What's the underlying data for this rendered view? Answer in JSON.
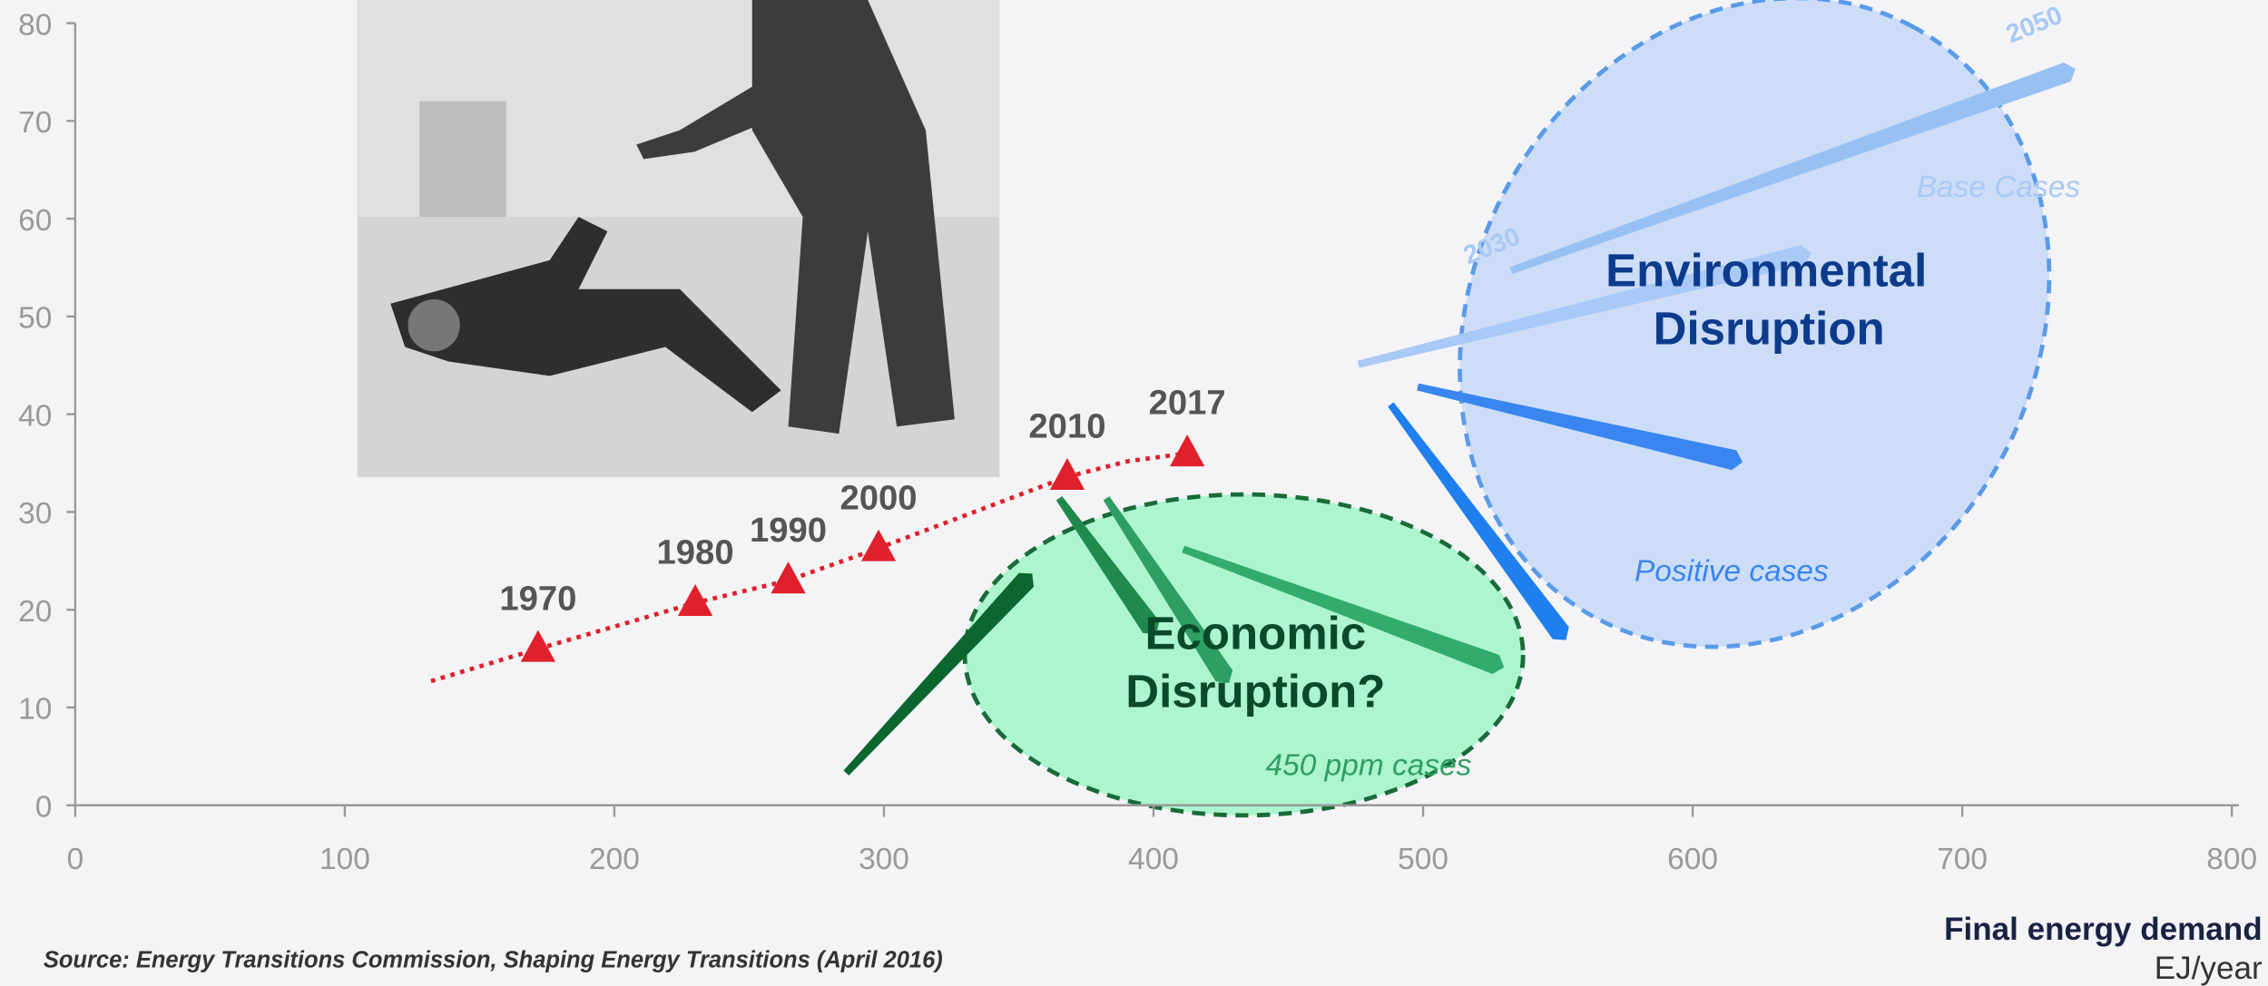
{
  "chart_data": {
    "type": "scatter",
    "x": [
      171.7,
      230,
      264.5,
      298,
      368,
      412.5
    ],
    "values": [
      16,
      20.7,
      23,
      26.3,
      33.6,
      36
    ],
    "value_labels": [
      "1970",
      "1980",
      "1990",
      "2000",
      "2010",
      "2017"
    ],
    "color": "#e0202a",
    "trend": {
      "x": [
        132,
        171.7,
        230,
        264.5,
        298,
        368,
        390.6,
        412.5
      ],
      "y": [
        12.7,
        16,
        20.7,
        23,
        26.3,
        33.6,
        35.2,
        36
      ],
      "color": "#e0202a"
    },
    "arrows": [
      {
        "x": [
          286,
          355
        ],
        "y": [
          3.3,
          23.7
        ],
        "color": "#0b6630"
      },
      {
        "x": [
          365,
          401
        ],
        "y": [
          31.4,
          17.5
        ],
        "color": "#1f8a4c"
      },
      {
        "x": [
          382.5,
          428
        ],
        "y": [
          31.4,
          12.5
        ],
        "color": "#2f9e62"
      },
      {
        "x": [
          411,
          530
        ],
        "y": [
          26.2,
          14.1
        ],
        "color": "#33ab6c"
      },
      {
        "x": [
          488,
          553
        ],
        "y": [
          41,
          16.9
        ],
        "color": "#1f7fef"
      },
      {
        "x": [
          498,
          618.5
        ],
        "y": [
          42.8,
          35.1
        ],
        "color": "#3a86f0"
      },
      {
        "x": [
          476,
          644
        ],
        "y": [
          45.1,
          56.5
        ],
        "color": "#a9c9f6"
      },
      {
        "x": [
          532.6,
          742
        ],
        "y": [
          54.7,
          75.3
        ],
        "color": "#98c0f3"
      }
    ],
    "xlim": [
      0,
      800
    ],
    "ylim": [
      0,
      80
    ],
    "xticks": [
      0,
      100,
      200,
      300,
      400,
      500,
      600,
      700,
      800
    ],
    "yticks": [
      0,
      10,
      20,
      30,
      40,
      50,
      60,
      70,
      80
    ],
    "environmental_label": [
      "Environmental",
      "Disruption"
    ],
    "economic_label": [
      "Economic",
      "Disruption?"
    ],
    "base_cases": "Base Cases",
    "positive_cases": "Positive cases",
    "ppm_cases": "450 ppm cases",
    "year_2050": "2050",
    "year_2030": "2030",
    "x_label": "Final energy demand",
    "x_unit": "EJ/year",
    "source": "Source: Energy Transitions Commission, Shaping Energy Transitions (April 2016)"
  }
}
